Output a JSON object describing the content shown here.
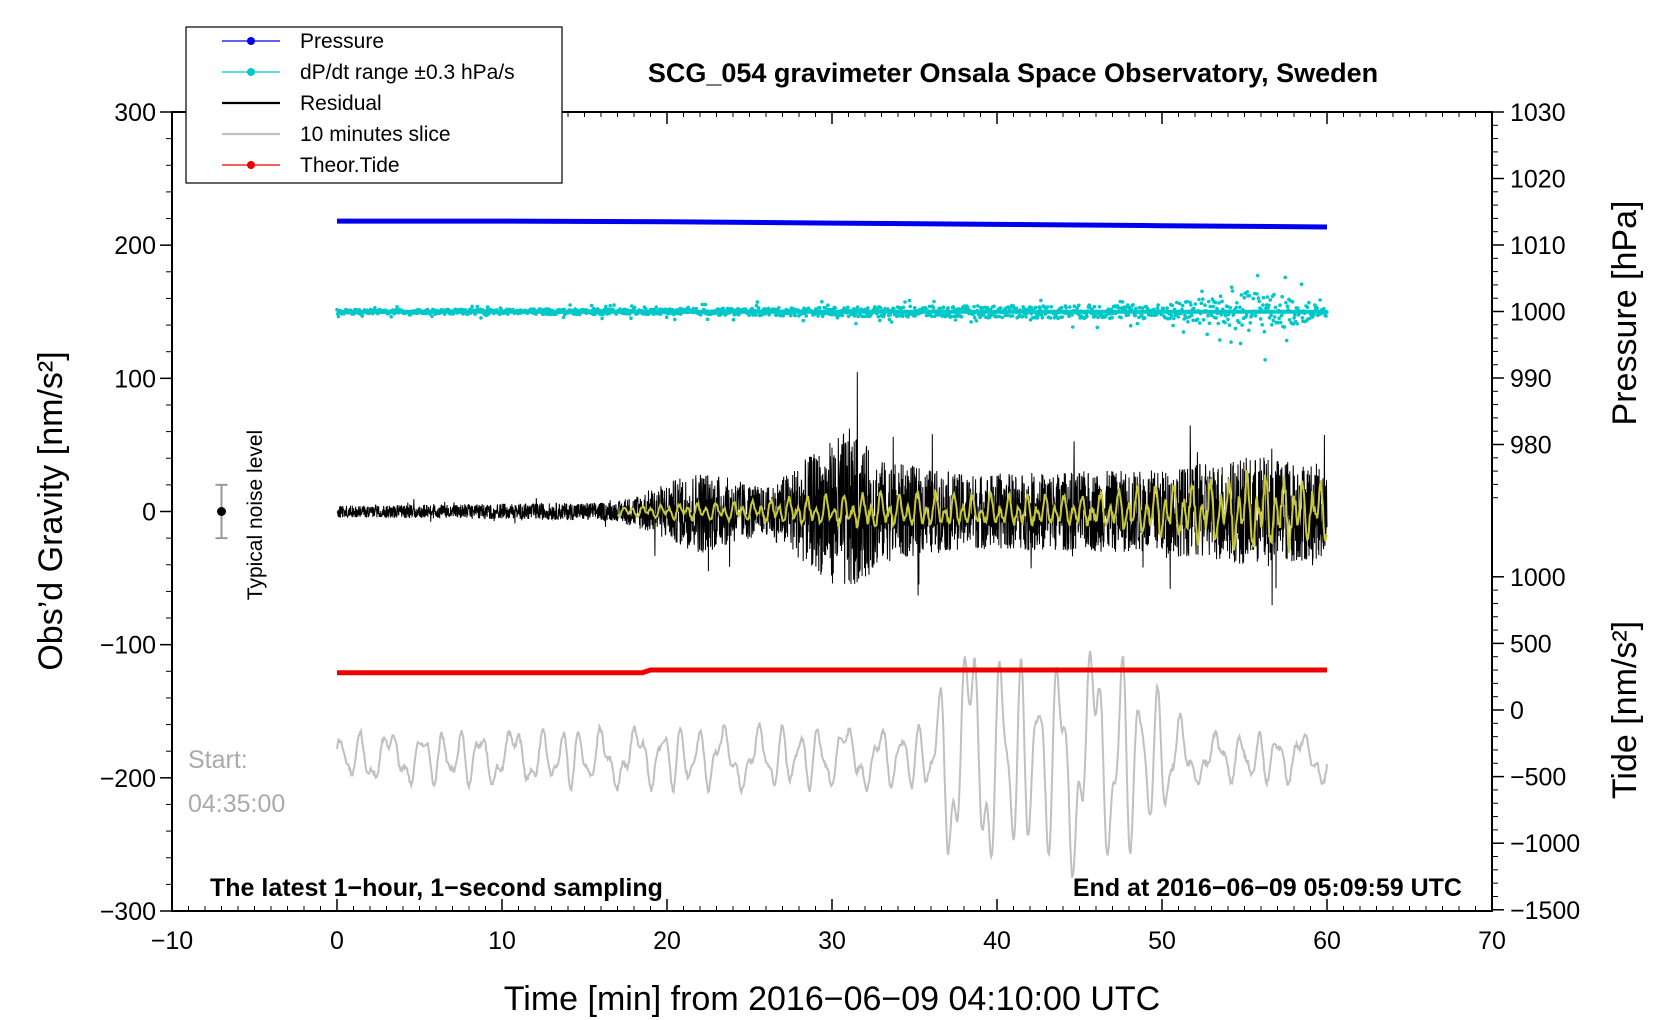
{
  "chart_data": {
    "type": "line",
    "title": "SCG_054 gravimeter Onsala Space Observatory, Sweden",
    "xlabel": "Time [min] from 2016−06−09 04:10:00 UTC",
    "xlim": [
      -10,
      70
    ],
    "x_ticks": [
      "−10",
      "0",
      "10",
      "20",
      "30",
      "40",
      "50",
      "60",
      "70"
    ],
    "ylabel_left": "Obs’d Gravity [nm/s²]",
    "ylim_left": [
      -300,
      300
    ],
    "y_ticks_left": [
      "−300",
      "−200",
      "−100",
      "0",
      "100",
      "200",
      "300"
    ],
    "ylabel_right_pressure": "Pressure [hPa]",
    "y_ticks_right_pressure": [
      "980",
      "990",
      "1000",
      "1010",
      "1020",
      "1030"
    ],
    "ylim_right_pressure": [
      970,
      1030
    ],
    "ylabel_right_tide": "Tide [nm/s²]",
    "y_ticks_right_tide": [
      "−1500",
      "−1000",
      "−500",
      "0",
      "500",
      "1000"
    ],
    "ylim_right_tide": [
      -1500,
      1500
    ],
    "legend": [
      {
        "name": "Pressure",
        "color": "#0000ee",
        "marker": true
      },
      {
        "name": "dP/dt range ±0.3 hPa/s",
        "color": "#00c8c8",
        "marker": true
      },
      {
        "name": "Residual",
        "color": "#000000",
        "marker": false
      },
      {
        "name": "10 minutes slice",
        "color": "#c0c0c0",
        "marker": false
      },
      {
        "name": "Theor.Tide",
        "color": "#ee0000",
        "marker": true
      }
    ],
    "legend_position": "top-left",
    "series": [
      {
        "name": "Pressure",
        "axis": "pressure",
        "x": [
          0,
          10,
          20,
          30,
          40,
          50,
          60
        ],
        "values": [
          1013.6,
          1013.6,
          1013.5,
          1013.3,
          1013.1,
          1012.9,
          1012.7
        ]
      },
      {
        "name": "dP/dt range ±0.3 hPa/s",
        "axis": "gravity",
        "x_range": [
          0,
          60
        ],
        "center": 150,
        "noise_envelope": [
          [
            0,
            3
          ],
          [
            20,
            4
          ],
          [
            38,
            8
          ],
          [
            50,
            10
          ],
          [
            56,
            30
          ],
          [
            60,
            6
          ]
        ]
      },
      {
        "name": "Residual",
        "axis": "gravity",
        "x_range": [
          0,
          60
        ],
        "center": 0,
        "amplitude_envelope": [
          [
            0,
            6
          ],
          [
            17,
            10
          ],
          [
            22,
            45
          ],
          [
            26,
            25
          ],
          [
            31,
            90
          ],
          [
            33,
            55
          ],
          [
            38,
            40
          ],
          [
            50,
            45
          ],
          [
            56,
            60
          ],
          [
            60,
            50
          ]
        ]
      },
      {
        "name": "Residual smoothed",
        "axis": "gravity",
        "color": "#c8c83c",
        "x_range": [
          17,
          60
        ],
        "center": 0,
        "amplitude_envelope": [
          [
            17,
            4
          ],
          [
            25,
            8
          ],
          [
            32,
            14
          ],
          [
            45,
            12
          ],
          [
            55,
            30
          ],
          [
            60,
            25
          ]
        ]
      },
      {
        "name": "Theor.Tide",
        "axis": "tide",
        "x": [
          0,
          18.5,
          19,
          60
        ],
        "values": [
          280,
          280,
          300,
          300
        ]
      },
      {
        "name": "10 minutes slice",
        "axis": "gravity",
        "x_range": [
          0,
          60
        ],
        "center": -185,
        "amplitude_envelope": [
          [
            0,
            20
          ],
          [
            20,
            25
          ],
          [
            36,
            25
          ],
          [
            37,
            90
          ],
          [
            39,
            100
          ],
          [
            42,
            70
          ],
          [
            45,
            95
          ],
          [
            48,
            80
          ],
          [
            52,
            20
          ],
          [
            60,
            20
          ]
        ]
      }
    ],
    "noise_marker": {
      "x": -7,
      "value": 0,
      "range": [
        -20,
        20
      ],
      "label": "Typical noise level"
    },
    "annotations": {
      "left_note": "The latest 1−hour, 1−second sampling",
      "right_note": "End at 2016−06−09 05:09:59 UTC",
      "start_label": "Start:",
      "start_time": "04:35:00"
    }
  }
}
